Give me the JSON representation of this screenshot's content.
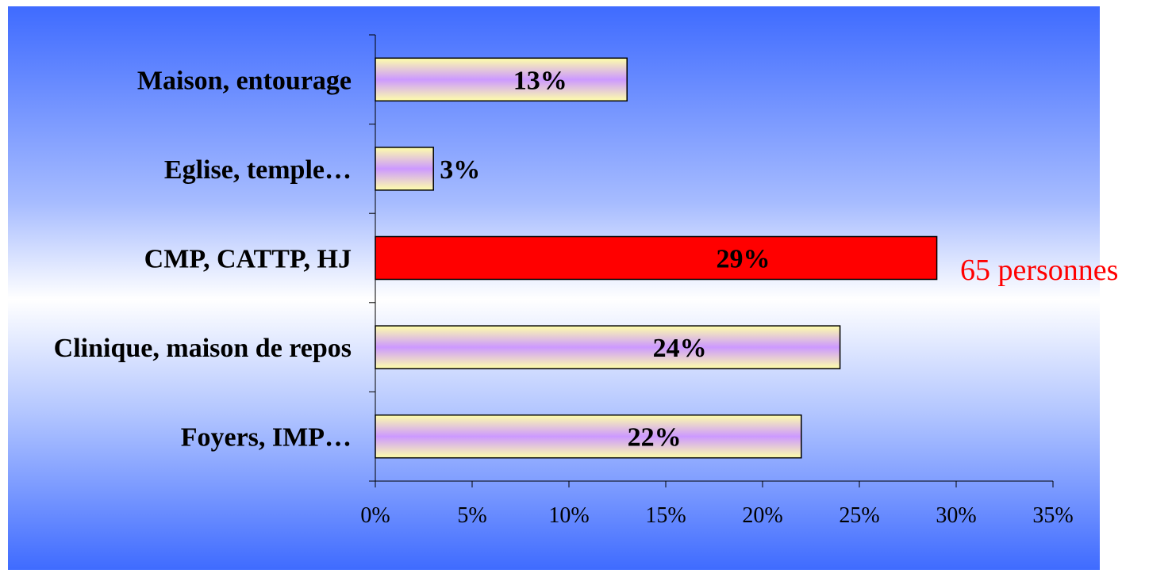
{
  "chart_data": {
    "type": "bar",
    "orientation": "horizontal",
    "categories": [
      "Maison, entourage",
      "Eglise, temple…",
      "CMP, CATTP, HJ",
      "Clinique, maison de repos",
      "Foyers, IMP…"
    ],
    "values": [
      13,
      3,
      29,
      24,
      22
    ],
    "data_labels": [
      "13%",
      "3%",
      "29%",
      "24%",
      "22%"
    ],
    "highlight_index": 2,
    "xlim": [
      0,
      35
    ],
    "x_ticks": [
      0,
      5,
      10,
      15,
      20,
      25,
      30,
      35
    ],
    "x_tick_labels": [
      "0%",
      "5%",
      "10%",
      "15%",
      "20%",
      "25%",
      "30%",
      "35%"
    ],
    "annotation": "65 personnes",
    "grid": false,
    "legend": "none"
  },
  "colors": {
    "bar_gradient": [
      "#ffffaa",
      "#cc99ff"
    ],
    "highlight_bar": "#ff0000",
    "annotation": "#ff0000",
    "background_gradient": [
      "#3f6bff",
      "#ffffff"
    ]
  }
}
